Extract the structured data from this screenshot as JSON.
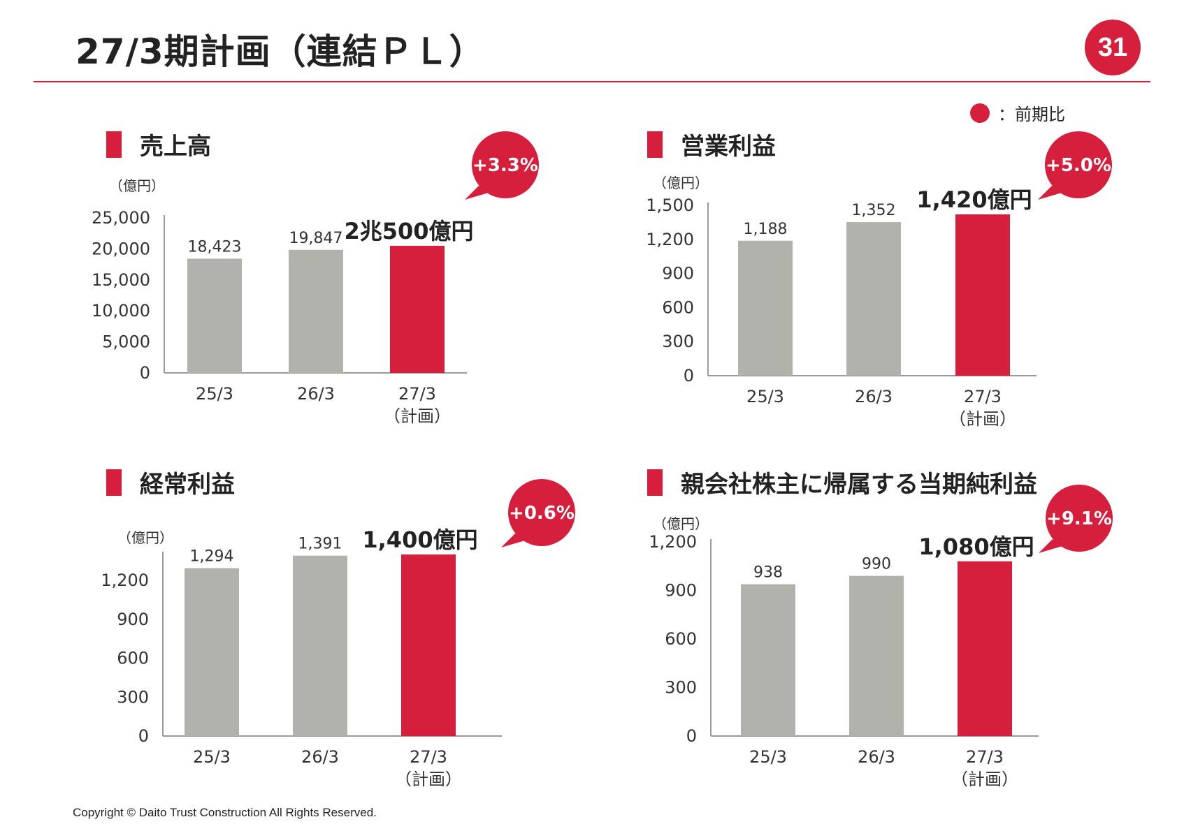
{
  "page": {
    "title": "27/3期計画（連結ＰＬ）",
    "number": "31",
    "legend_label": "：前期比",
    "copyright": "Copyright © Daito Trust Construction All Rights Reserved."
  },
  "colors": {
    "accent": "#d61f3d",
    "bar_past": "#b2b2ad",
    "axis": "#9a9a9a"
  },
  "chart_data": [
    {
      "type": "bar",
      "title": "売上高",
      "unit": "（億円）",
      "categories": [
        "25/3",
        "26/3",
        "27/3"
      ],
      "category_sublabels": [
        "",
        "",
        "（計画）"
      ],
      "values": [
        18423,
        19847,
        20500
      ],
      "value_labels": [
        "18,423",
        "19,847",
        "2兆500億円"
      ],
      "ylim": [
        0,
        25000
      ],
      "yticks": [
        "0",
        "5,000",
        "10,000",
        "15,000",
        "20,000",
        "25,000"
      ],
      "yoy": "+3.3%"
    },
    {
      "type": "bar",
      "title": "営業利益",
      "unit": "（億円）",
      "categories": [
        "25/3",
        "26/3",
        "27/3"
      ],
      "category_sublabels": [
        "",
        "",
        "（計画）"
      ],
      "values": [
        1188,
        1352,
        1420
      ],
      "value_labels": [
        "1,188",
        "1,352",
        "1,420億円"
      ],
      "ylim": [
        0,
        1500
      ],
      "yticks": [
        "0",
        "300",
        "600",
        "900",
        "1,200",
        "1,500"
      ],
      "yoy": "+5.0%"
    },
    {
      "type": "bar",
      "title": "経常利益",
      "unit": "（億円）",
      "categories": [
        "25/3",
        "26/3",
        "27/3"
      ],
      "category_sublabels": [
        "",
        "",
        "（計画）"
      ],
      "values": [
        1294,
        1391,
        1400
      ],
      "value_labels": [
        "1,294",
        "1,391",
        "1,400億円"
      ],
      "ylim": [
        0,
        1400
      ],
      "yticks": [
        "0",
        "300",
        "600",
        "900",
        "1,200"
      ],
      "yoy": "+0.6%"
    },
    {
      "type": "bar",
      "title": "親会社株主に帰属する当期純利益",
      "unit": "（億円）",
      "categories": [
        "25/3",
        "26/3",
        "27/3"
      ],
      "category_sublabels": [
        "",
        "",
        "（計画）"
      ],
      "values": [
        938,
        990,
        1080
      ],
      "value_labels": [
        "938",
        "990",
        "1,080億円"
      ],
      "ylim": [
        0,
        1200
      ],
      "yticks": [
        "0",
        "300",
        "600",
        "900",
        "1,200"
      ],
      "yoy": "+9.1%"
    }
  ]
}
